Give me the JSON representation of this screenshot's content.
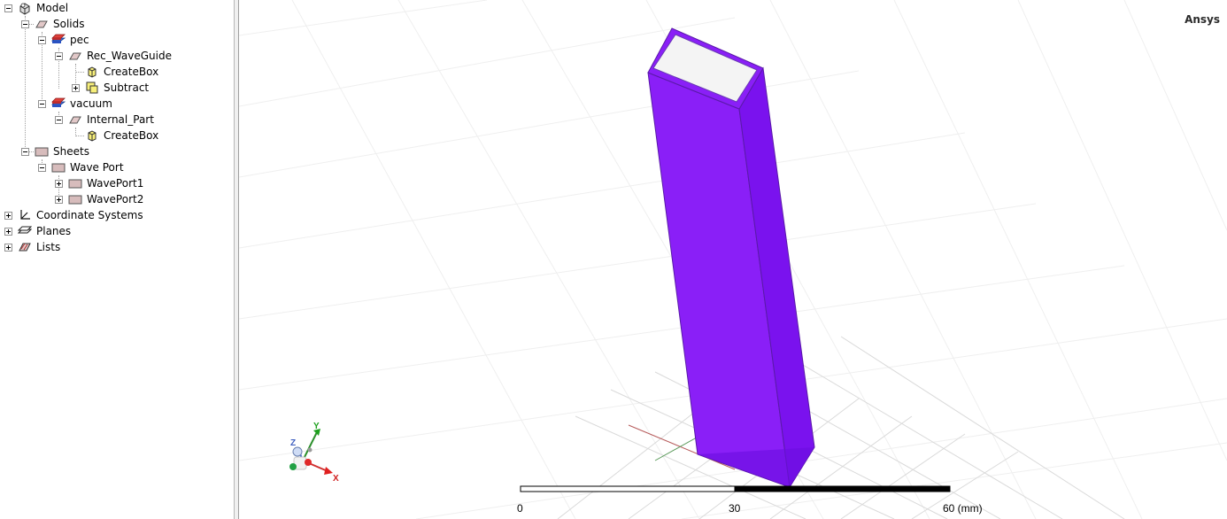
{
  "tree": {
    "model": "Model",
    "solids": "Solids",
    "pec": "pec",
    "rec_waveguide": "Rec_WaveGuide",
    "createbox_1": "CreateBox",
    "subtract": "Subtract",
    "vacuum": "vacuum",
    "internal_part": "Internal_Part",
    "createbox_2": "CreateBox",
    "sheets": "Sheets",
    "wave_port": "Wave Port",
    "waveport1": "WavePort1",
    "waveport2": "WavePort2",
    "coordinate_systems": "Coordinate Systems",
    "planes": "Planes",
    "lists": "Lists"
  },
  "viewport": {
    "brand": "Ansys",
    "axes": {
      "x": "X",
      "y": "Y",
      "z": "Z"
    },
    "scale": {
      "tick0": "0",
      "tick1": "30",
      "tick2": "60 (mm)"
    },
    "colors": {
      "solid_front": "#8a1ff7",
      "solid_side": "#7a12ee",
      "solid_top": "#f4f4f4",
      "solid_edge": "#5a1aa8"
    }
  }
}
